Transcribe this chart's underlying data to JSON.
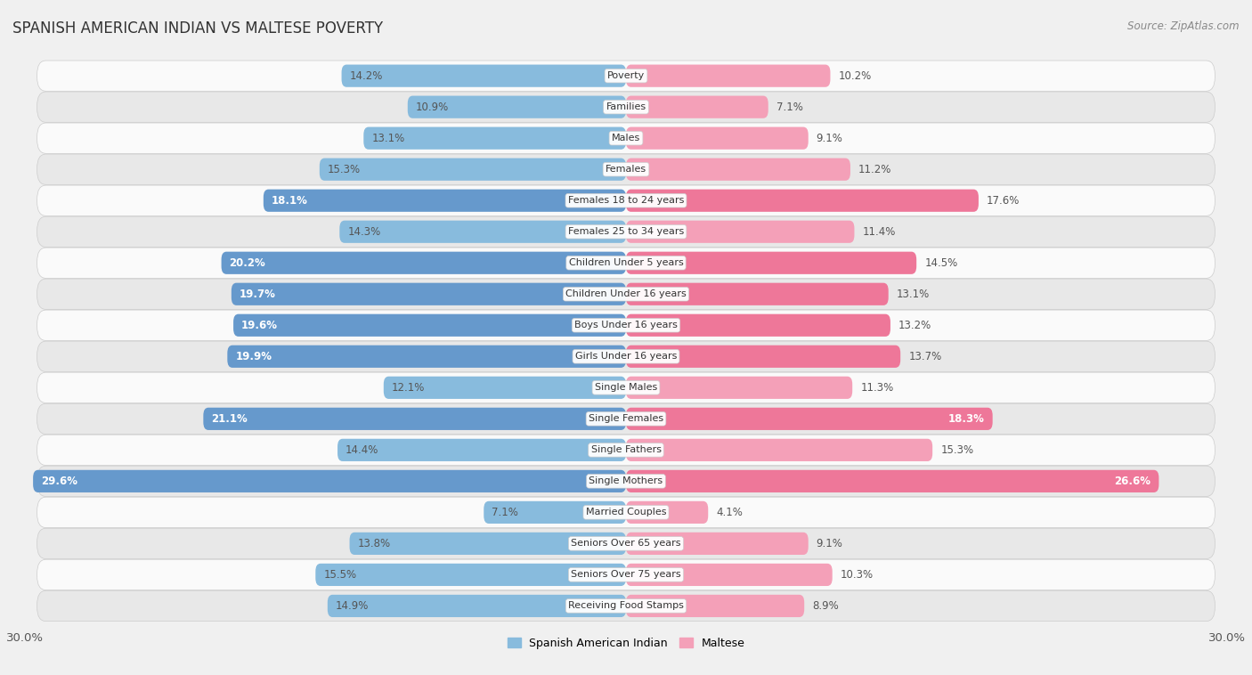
{
  "title": "SPANISH AMERICAN INDIAN VS MALTESE POVERTY",
  "source": "Source: ZipAtlas.com",
  "categories": [
    "Poverty",
    "Families",
    "Males",
    "Females",
    "Females 18 to 24 years",
    "Females 25 to 34 years",
    "Children Under 5 years",
    "Children Under 16 years",
    "Boys Under 16 years",
    "Girls Under 16 years",
    "Single Males",
    "Single Females",
    "Single Fathers",
    "Single Mothers",
    "Married Couples",
    "Seniors Over 65 years",
    "Seniors Over 75 years",
    "Receiving Food Stamps"
  ],
  "spanish_american_indian": [
    14.2,
    10.9,
    13.1,
    15.3,
    18.1,
    14.3,
    20.2,
    19.7,
    19.6,
    19.9,
    12.1,
    21.1,
    14.4,
    29.6,
    7.1,
    13.8,
    15.5,
    14.9
  ],
  "maltese": [
    10.2,
    7.1,
    9.1,
    11.2,
    17.6,
    11.4,
    14.5,
    13.1,
    13.2,
    13.7,
    11.3,
    18.3,
    15.3,
    26.6,
    4.1,
    9.1,
    10.3,
    8.9
  ],
  "color_blue": "#88bbdd",
  "color_pink": "#f4a0b8",
  "color_blue_highlight": "#6699cc",
  "color_pink_highlight": "#ee7799",
  "axis_max": 30.0,
  "background_color": "#f0f0f0",
  "row_bg_light": "#fafafa",
  "row_bg_dark": "#e8e8e8",
  "highlighted_rows": [
    4,
    6,
    7,
    8,
    9,
    11,
    13
  ],
  "label_fontsize": 8.5,
  "cat_fontsize": 8.0,
  "title_fontsize": 12,
  "source_fontsize": 8.5,
  "legend_fontsize": 9
}
